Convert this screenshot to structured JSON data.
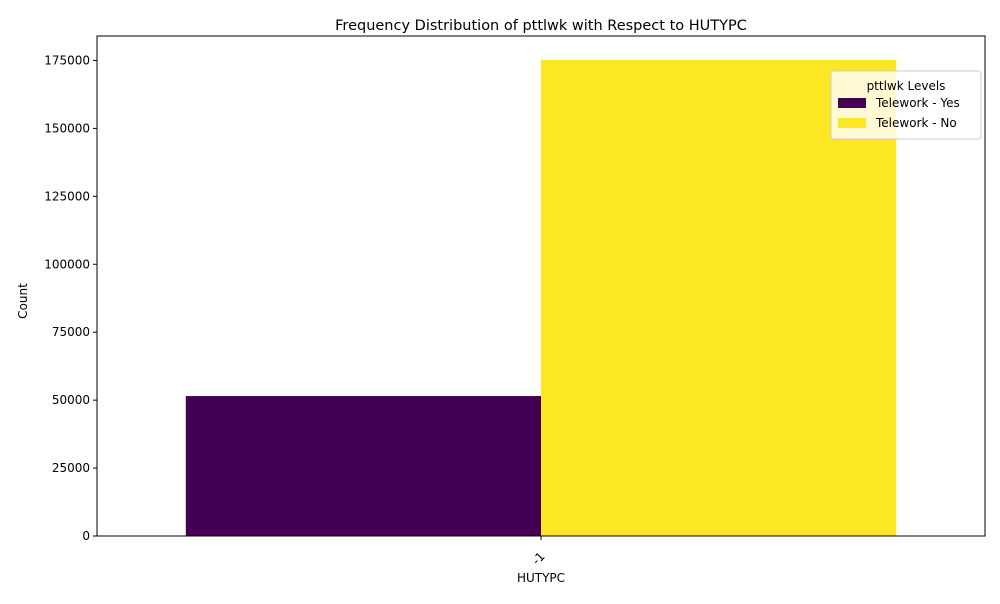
{
  "chart_data": {
    "type": "bar",
    "title": "Frequency Distribution of pttlwk with Respect to HUTYPC",
    "xlabel": "HUTYPC",
    "ylabel": "Count",
    "categories": [
      "-1"
    ],
    "series": [
      {
        "name": "Telework - Yes",
        "values": [
          51500
        ],
        "color": "#440154"
      },
      {
        "name": "Telework - No",
        "values": [
          175200
        ],
        "color": "#fde725"
      }
    ],
    "ylim": [
      0,
      184000
    ],
    "yticks": [
      0,
      25000,
      50000,
      75000,
      100000,
      125000,
      150000,
      175000
    ],
    "grid": false,
    "legend": {
      "title": "pttlwk Levels",
      "placement": "top-right"
    }
  }
}
